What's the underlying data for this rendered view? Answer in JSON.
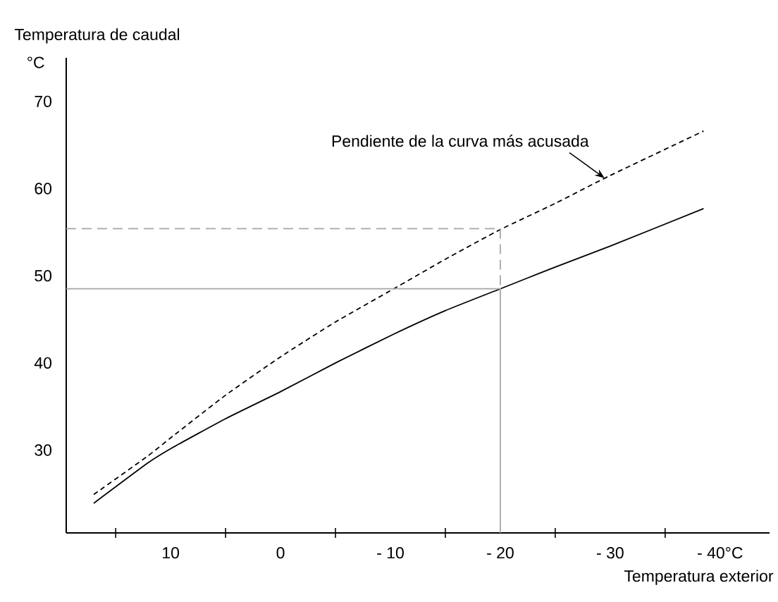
{
  "chart_data": {
    "type": "line",
    "ylabel": "Temperatura de caudal",
    "xlabel": "Temperatura exterior",
    "xlim": [
      19.5,
      -44.5
    ],
    "ylim": [
      20.5,
      75
    ],
    "xticks": [
      10,
      0,
      {
        "value": -10,
        "label": "- 10"
      },
      {
        "value": -20,
        "label": "- 20"
      },
      {
        "value": -30,
        "label": "- 30"
      },
      {
        "value": -40,
        "label": "- 40°C"
      },
      {
        "value": 15,
        "label": null
      },
      {
        "value": 5,
        "label": null
      },
      {
        "value": -5,
        "label": null
      },
      {
        "value": -15,
        "label": null
      },
      {
        "value": -25,
        "label": null
      },
      {
        "value": -35,
        "label": null
      }
    ],
    "yticks": [
      30,
      40,
      50,
      60,
      70
    ],
    "grid": false,
    "marker": "none",
    "series": [
      {
        "color": "#000000",
        "line_style": "solid",
        "x": [
          17.0,
          12.1,
          9.8,
          5,
          0,
          -5,
          -10.3,
          -15,
          -20,
          -25,
          -30,
          -38.5
        ],
        "values": [
          23.9,
          28.5,
          30.3,
          33.6,
          36.7,
          40.0,
          43.3,
          46.0,
          48.5,
          51.0,
          53.4,
          57.7
        ]
      },
      {
        "color": "#000000",
        "line_style": "dashed",
        "x": [
          17.0,
          12.1,
          9.8,
          5,
          0,
          -5,
          -10.3,
          -15,
          -20,
          -25,
          -30,
          -38.5
        ],
        "values": [
          24.9,
          29.3,
          31.6,
          36.3,
          40.7,
          44.7,
          48.5,
          51.9,
          55.3,
          58.3,
          61.5,
          66.6
        ]
      },
      {
        "color": "#a6a6a6",
        "line_style": "solid",
        "x": [
          19.5,
          -20,
          -20
        ],
        "values": [
          48.5,
          48.5,
          20.5
        ]
      },
      {
        "color": "#a6a6a6",
        "line_style": "dashed",
        "x": [
          19.5,
          -20,
          -20
        ],
        "values": [
          55.4,
          55.4,
          48.5
        ]
      }
    ],
    "annotations": [
      {
        "text": "Pendiente de la curva más acusada",
        "x": -29.5,
        "y": 61.2
      },
      "°C"
    ]
  }
}
